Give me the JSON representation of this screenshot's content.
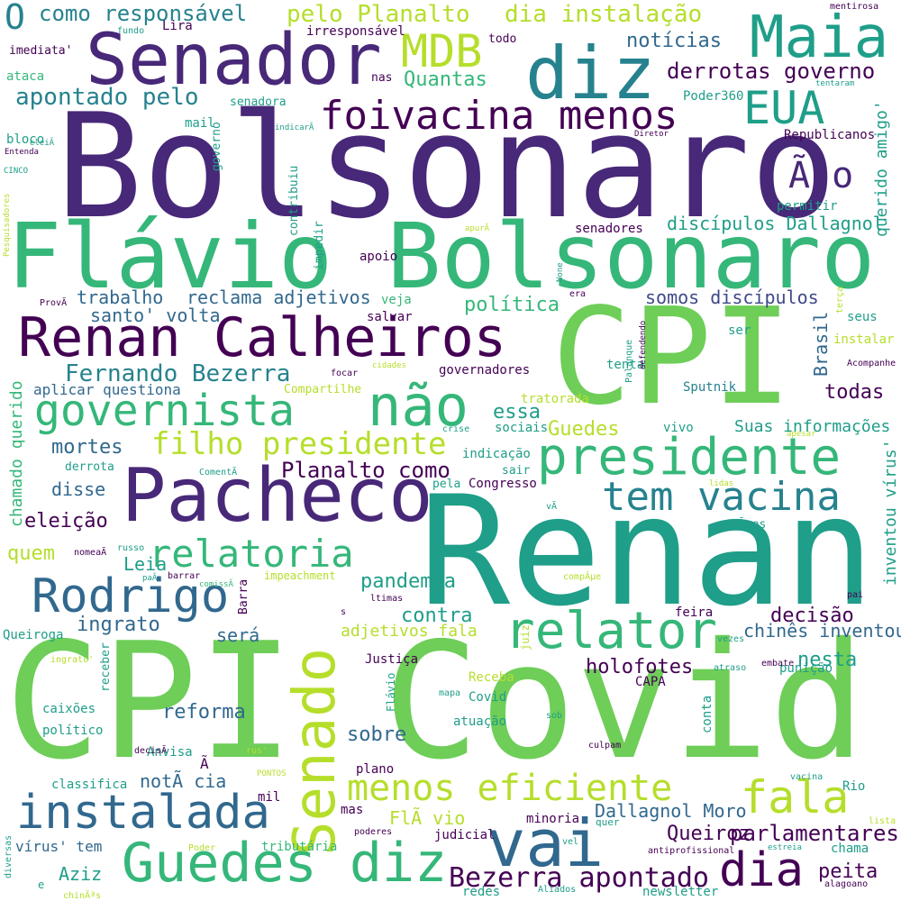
{
  "palette": {
    "background": "#ffffff",
    "dark_purple": "#440154",
    "indigo": "#482878",
    "blue_violet": "#3e4989",
    "slate_blue": "#31688e",
    "teal_blue": "#26828e",
    "teal": "#1f9e89",
    "green_teal": "#35b779",
    "green": "#6ece58",
    "lime": "#b5de2b",
    "yellow": "#e8e419"
  },
  "words": [
    {
      "text": "Bolsonaro",
      "color": "#482878"
    },
    {
      "text": "Renan",
      "color": "#1f9e89"
    },
    {
      "text": "CPI",
      "color": "#6ece58"
    },
    {
      "text": "Covid",
      "color": "#6ece58"
    },
    {
      "text": "CPI",
      "color": "#6ece58"
    },
    {
      "text": "Flávio Bolsonaro",
      "color": "#35b779"
    },
    {
      "text": "Senador",
      "color": "#482878"
    },
    {
      "text": "diz",
      "color": "#26828e"
    },
    {
      "text": "Maia",
      "color": "#1f9e89"
    },
    {
      "text": "Pacheco",
      "color": "#482878"
    },
    {
      "text": "Renan Calheiros",
      "color": "#440154"
    },
    {
      "text": "Senado",
      "color": "#b5de2b"
    },
    {
      "text": "vai",
      "color": "#31688e"
    },
    {
      "text": "presidente",
      "color": "#35b779"
    },
    {
      "text": "não",
      "color": "#35b779"
    },
    {
      "text": "Guedes diz",
      "color": "#35b779"
    },
    {
      "text": "instalada",
      "color": "#31688e"
    },
    {
      "text": "relator",
      "color": "#35b779"
    },
    {
      "text": "dia",
      "color": "#440154"
    },
    {
      "text": "fala",
      "color": "#b5de2b"
    },
    {
      "text": "Rodrigo",
      "color": "#31688e"
    },
    {
      "text": "governista",
      "color": "#35b779"
    },
    {
      "text": "tem vacina",
      "color": "#26828e"
    },
    {
      "text": "relatoria",
      "color": "#35b779"
    },
    {
      "text": "menos eficiente",
      "color": "#b5de2b"
    },
    {
      "text": "foivacina menos",
      "color": "#440154"
    },
    {
      "text": "MDB",
      "color": "#b5de2b"
    },
    {
      "text": "EUA",
      "color": "#1f9e89"
    },
    {
      "text": "Ã o",
      "color": "#482878"
    },
    {
      "text": "filho presidente",
      "color": "#b5de2b"
    },
    {
      "text": "Planalto como",
      "color": "#440154"
    },
    {
      "text": "Bezerra apontado",
      "color": "#440154"
    },
    {
      "text": "parlamentares",
      "color": "#440154"
    },
    {
      "text": "Fernando Bezerra",
      "color": "#26828e"
    },
    {
      "text": "apontado pelo",
      "color": "#26828e"
    },
    {
      "text": "pelo Planalto",
      "color": "#b5de2b"
    },
    {
      "text": "dia instalação",
      "color": "#b5de2b"
    },
    {
      "text": "como responsável",
      "color": "#26828e"
    },
    {
      "text": "O",
      "color": "#26828e"
    },
    {
      "text": "derrotas governo",
      "color": "#440154"
    },
    {
      "text": "notícias",
      "color": "#31688e"
    },
    {
      "text": "Quantas",
      "color": "#35b779"
    },
    {
      "text": "Dallagnol Moro",
      "color": "#31688e"
    },
    {
      "text": "Queiroz",
      "color": "#440154"
    },
    {
      "text": "Leia",
      "color": "#1f9e89"
    },
    {
      "text": "pandemia",
      "color": "#1f9e89"
    },
    {
      "text": "contra",
      "color": "#1f9e89"
    },
    {
      "text": "decisão",
      "color": "#440154"
    },
    {
      "text": "nesta",
      "color": "#1f9e89"
    },
    {
      "text": "holofotes",
      "color": "#440154"
    },
    {
      "text": "trabalho",
      "color": "#31688e"
    },
    {
      "text": "santo' volta",
      "color": "#31688e"
    },
    {
      "text": "reclama adjetivos",
      "color": "#31688e"
    },
    {
      "text": "política",
      "color": "#35b779"
    },
    {
      "text": "somos discípulos",
      "color": "#3e4989"
    },
    {
      "text": "discípulos Dallagnol",
      "color": "#1f9e89"
    },
    {
      "text": "todas",
      "color": "#440154"
    },
    {
      "text": "Suas informações",
      "color": "#1f9e89"
    },
    {
      "text": "chinês inventou",
      "color": "#31688e"
    },
    {
      "text": "será",
      "color": "#31688e"
    },
    {
      "text": "ingrato",
      "color": "#31688e"
    },
    {
      "text": "reforma",
      "color": "#31688e"
    },
    {
      "text": "sobre",
      "color": "#31688e"
    },
    {
      "text": "mortes",
      "color": "#31688e"
    },
    {
      "text": "disse",
      "color": "#31688e"
    },
    {
      "text": "eleição",
      "color": "#440154"
    },
    {
      "text": "quem",
      "color": "#b5de2b"
    },
    {
      "text": "essa",
      "color": "#1f9e89"
    },
    {
      "text": "Guedes",
      "color": "#b5de2b"
    },
    {
      "text": "aplicar questiona",
      "color": "#31688e"
    },
    {
      "text": "Aziz",
      "color": "#1f9e89"
    },
    {
      "text": "peita",
      "color": "#440154"
    },
    {
      "text": "FlÃ vio",
      "color": "#b5de2b"
    },
    {
      "text": "notÃ cia",
      "color": "#31688e"
    },
    {
      "text": "adjetivos fala",
      "color": "#b5de2b"
    },
    {
      "text": "Brasil",
      "color": "#31688e"
    },
    {
      "text": "querido amigo'",
      "color": "#1f9e89"
    },
    {
      "text": "inventou vírus'",
      "color": "#1f9e89"
    },
    {
      "text": "chamado querido",
      "color": "#35b779"
    },
    {
      "text": "vírus' tem",
      "color": "#31688e"
    },
    {
      "text": "Sputnik",
      "color": "#26828e"
    },
    {
      "text": "Compartilhe",
      "color": "#b5de2b"
    },
    {
      "text": "tratorada",
      "color": "#b5de2b"
    },
    {
      "text": "sociais",
      "color": "#1f9e89"
    },
    {
      "text": "indicação",
      "color": "#1f9e89"
    },
    {
      "text": "Congresso",
      "color": "#440154"
    },
    {
      "text": "Justiça",
      "color": "#440154"
    },
    {
      "text": "Receba",
      "color": "#b5de2b"
    },
    {
      "text": "Covid",
      "color": "#1f9e89"
    },
    {
      "text": "atuação",
      "color": "#1f9e89"
    },
    {
      "text": "caixões",
      "color": "#1f9e89"
    },
    {
      "text": "político",
      "color": "#1f9e89"
    },
    {
      "text": "Anvisa",
      "color": "#1f9e89"
    },
    {
      "text": "classifica",
      "color": "#1f9e89"
    },
    {
      "text": "plano",
      "color": "#440154"
    },
    {
      "text": "minoria",
      "color": "#440154"
    },
    {
      "text": "judicial",
      "color": "#440154"
    },
    {
      "text": "tributária",
      "color": "#35b779"
    },
    {
      "text": "Queiroga",
      "color": "#1f9e89"
    },
    {
      "text": "Ã",
      "color": "#440154"
    },
    {
      "text": "mil",
      "color": "#440154"
    },
    {
      "text": "mas",
      "color": "#440154"
    },
    {
      "text": "governadores",
      "color": "#440154"
    },
    {
      "text": "tenta",
      "color": "#1f9e89"
    },
    {
      "text": "vivo",
      "color": "#1f9e89"
    },
    {
      "text": "veja",
      "color": "#35b779"
    },
    {
      "text": "salvar",
      "color": "#440154"
    },
    {
      "text": "apoio",
      "color": "#440154"
    },
    {
      "text": "permitir",
      "color": "#1f9e89"
    },
    {
      "text": "senadores",
      "color": "#440154"
    },
    {
      "text": "Republicanos",
      "color": "#440154"
    },
    {
      "text": "Poder360",
      "color": "#1f9e89"
    },
    {
      "text": "seus",
      "color": "#1f9e89"
    },
    {
      "text": "instalar",
      "color": "#b5de2b"
    },
    {
      "text": "ser",
      "color": "#1f9e89"
    },
    {
      "text": "feira",
      "color": "#440154"
    },
    {
      "text": "CAPA",
      "color": "#440154"
    },
    {
      "text": "conta",
      "color": "#1f9e89"
    },
    {
      "text": "punição",
      "color": "#1f9e89"
    },
    {
      "text": "Rio",
      "color": "#1f9e89"
    },
    {
      "text": "chama",
      "color": "#1f9e89"
    },
    {
      "text": "newsletter",
      "color": "#1f9e89"
    },
    {
      "text": "redes",
      "color": "#1f9e89"
    },
    {
      "text": "Lira",
      "color": "#440154"
    },
    {
      "text": "irresponsável",
      "color": "#440154"
    },
    {
      "text": "todo",
      "color": "#440154"
    },
    {
      "text": "imediata'",
      "color": "#440154"
    },
    {
      "text": "ataca",
      "color": "#35b779"
    },
    {
      "text": "bloco",
      "color": "#1f9e89"
    },
    {
      "text": "mail",
      "color": "#1f9e89"
    },
    {
      "text": "senadora",
      "color": "#1f9e89"
    },
    {
      "text": "nas",
      "color": "#440154"
    },
    {
      "text": "contribuiu",
      "color": "#1f9e89"
    },
    {
      "text": "impedir",
      "color": "#1f9e89"
    },
    {
      "text": "governo",
      "color": "#1f9e89"
    },
    {
      "text": "derrota",
      "color": "#1f9e89"
    },
    {
      "text": "sair",
      "color": "#1f9e89"
    },
    {
      "text": "pela",
      "color": "#1f9e89"
    },
    {
      "text": "Barra",
      "color": "#440154"
    },
    {
      "text": "receber",
      "color": "#1f9e89"
    },
    {
      "text": "Flávio",
      "color": "#1f9e89"
    },
    {
      "text": "juiz",
      "color": "#b5de2b"
    },
    {
      "text": "PONTOS",
      "color": "#b5de2b"
    },
    {
      "text": "poderes",
      "color": "#440154"
    },
    {
      "text": "quer",
      "color": "#1f9e89"
    },
    {
      "text": "vel",
      "color": "#1f9e89"
    },
    {
      "text": "antiprofissional",
      "color": "#440154"
    },
    {
      "text": "estreia",
      "color": "#1f9e89"
    },
    {
      "text": "alagoano",
      "color": "#440154"
    },
    {
      "text": "Aliados",
      "color": "#1f9e89"
    },
    {
      "text": "Poder",
      "color": "#b5de2b"
    },
    {
      "text": "chinÃªs",
      "color": "#b5de2b"
    },
    {
      "text": "e",
      "color": "#1f9e89"
    },
    {
      "text": "diversas",
      "color": "#1f9e89"
    },
    {
      "text": "lista",
      "color": "#b5de2b"
    },
    {
      "text": "vacina",
      "color": "#1f9e89"
    },
    {
      "text": "culpam",
      "color": "#440154"
    },
    {
      "text": "mapa",
      "color": "#1f9e89"
    },
    {
      "text": "sob",
      "color": "#1f9e89"
    },
    {
      "text": "atraso",
      "color": "#1f9e89"
    },
    {
      "text": "embate",
      "color": "#440154"
    },
    {
      "text": "vezes",
      "color": "#1f9e89"
    },
    {
      "text": "pai",
      "color": "#440154"
    },
    {
      "text": "compÂµe",
      "color": "#b5de2b"
    },
    {
      "text": "ltimas",
      "color": "#440154"
    },
    {
      "text": "s",
      "color": "#440154"
    },
    {
      "text": "impeachment",
      "color": "#b5de2b"
    },
    {
      "text": "barrar",
      "color": "#440154"
    },
    {
      "text": "paÃ",
      "color": "#1f9e89"
    },
    {
      "text": "comissÃ",
      "color": "#35b779"
    },
    {
      "text": "russo",
      "color": "#1f9e89"
    },
    {
      "text": "nomeaÃ",
      "color": "#440154"
    },
    {
      "text": "Ãµes",
      "color": "#1f9e89"
    },
    {
      "text": "vÃ",
      "color": "#1f9e89"
    },
    {
      "text": "lidas",
      "color": "#b5de2b"
    },
    {
      "text": "apesar",
      "color": "#b5de2b"
    },
    {
      "text": "crise",
      "color": "#1f9e89"
    },
    {
      "text": "cidades",
      "color": "#b5de2b"
    },
    {
      "text": "focar",
      "color": "#440154"
    },
    {
      "text": "Acompanhe",
      "color": "#440154"
    },
    {
      "text": "ComentÃ",
      "color": "#1f9e89"
    },
    {
      "text": "rus'",
      "color": "#b5de2b"
    },
    {
      "text": "decisÃ",
      "color": "#440154"
    },
    {
      "text": "ingrato'",
      "color": "#b5de2b"
    },
    {
      "text": "eleiÃ",
      "color": "#1f9e89"
    },
    {
      "text": "Entenda",
      "color": "#440154"
    },
    {
      "text": "CINCO",
      "color": "#1f9e89"
    },
    {
      "text": "Pesquisadores",
      "color": "#b5de2b"
    },
    {
      "text": "ProvÃ",
      "color": "#440154"
    },
    {
      "text": "era",
      "color": "#440154"
    },
    {
      "text": "None",
      "color": "#1f9e89"
    },
    {
      "text": "apurÃ",
      "color": "#b5de2b"
    },
    {
      "text": "Palanque",
      "color": "#1f9e89"
    },
    {
      "text": "defendendo",
      "color": "#440154"
    },
    {
      "text": "terça",
      "color": "#b5de2b"
    },
    {
      "text": "Diretor",
      "color": "#440154"
    },
    {
      "text": "tentaram",
      "color": "#1f9e89"
    },
    {
      "text": "indicarÃ",
      "color": "#1f9e89"
    },
    {
      "text": "mentirosa",
      "color": "#440154"
    },
    {
      "text": "fundo",
      "color": "#1f9e89"
    }
  ]
}
